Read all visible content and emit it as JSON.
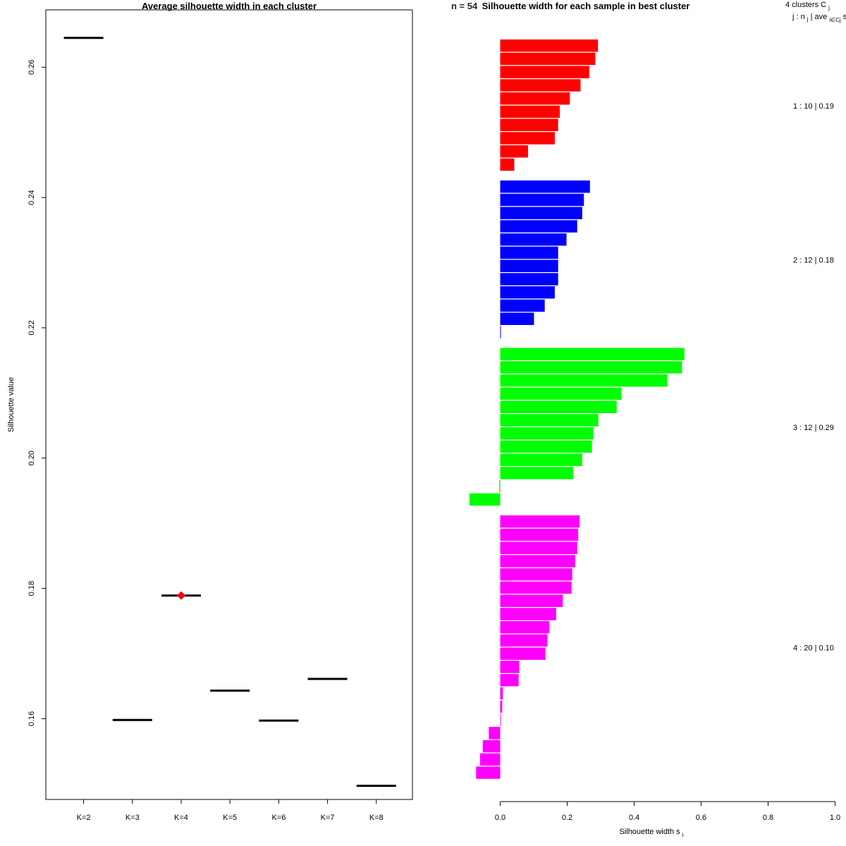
{
  "chart_data": [
    {
      "type": "scatter",
      "title": "Average silhouette width in each cluster",
      "xlabel": "",
      "ylabel": "Silhouette value",
      "categories": [
        "K=2",
        "K=3",
        "K=4",
        "K=5",
        "K=6",
        "K=7",
        "K=8"
      ],
      "values": [
        0.2645,
        0.1598,
        0.1789,
        0.1643,
        0.1597,
        0.1661,
        0.1497
      ],
      "best": "K=4",
      "best_color": "#ff0000",
      "ylim": [
        0.1476,
        0.2688
      ],
      "yticks": [
        0.16,
        0.18,
        0.2,
        0.22,
        0.24,
        0.26
      ],
      "ytick_labels": [
        "0.16",
        "0.18",
        "0.20",
        "0.22",
        "0.24",
        "0.26"
      ]
    },
    {
      "type": "bar",
      "orientation": "horizontal",
      "title": "Silhouette width for each sample in best cluster",
      "title_overlap": "n = 54",
      "xlabel": "Silhouette width s",
      "xlabel_sub": "i",
      "xlim": [
        0,
        1
      ],
      "xticks": [
        0.0,
        0.2,
        0.4,
        0.6,
        0.8,
        1.0
      ],
      "xtick_labels": [
        "0.0",
        "0.2",
        "0.4",
        "0.6",
        "0.8",
        "1.0"
      ],
      "legend_header_1": "4  clusters  C",
      "legend_header_1_sub": "j",
      "legend_header_2": "j :  n",
      "legend_header_2_sub": "j",
      "legend_header_2_mid": " | ave",
      "legend_header_2_sub2": "i∈Cj",
      "legend_header_2_end": "  s",
      "legend_header_2_end_sub": "i",
      "clusters": [
        {
          "id": 1,
          "n": 10,
          "avg": "0.19",
          "label": "1 :   10  |  0.19",
          "color": "#ff0000",
          "values": [
            0.292,
            0.284,
            0.266,
            0.24,
            0.208,
            0.178,
            0.173,
            0.163,
            0.083,
            0.042
          ]
        },
        {
          "id": 2,
          "n": 12,
          "avg": "0.18",
          "label": "2 :   12  |  0.18",
          "color": "#0000ff",
          "values": [
            0.268,
            0.25,
            0.245,
            0.23,
            0.198,
            0.173,
            0.173,
            0.173,
            0.163,
            0.133,
            0.101,
            0.0
          ]
        },
        {
          "id": 3,
          "n": 12,
          "avg": "0.29",
          "label": "3 :   12  |  0.29",
          "color": "#00ff00",
          "values": [
            0.55,
            0.543,
            0.499,
            0.362,
            0.348,
            0.293,
            0.278,
            0.274,
            0.245,
            0.218,
            -0.003,
            -0.092
          ]
        },
        {
          "id": 4,
          "n": 20,
          "avg": "0.10",
          "label": "4 :   20  |  0.10",
          "color": "#ff00ff",
          "values": [
            0.237,
            0.233,
            0.23,
            0.224,
            0.215,
            0.213,
            0.187,
            0.167,
            0.147,
            0.141,
            0.135,
            0.057,
            0.055,
            0.008,
            0.006,
            0.0,
            -0.034,
            -0.052,
            -0.06,
            -0.072
          ]
        }
      ]
    }
  ]
}
